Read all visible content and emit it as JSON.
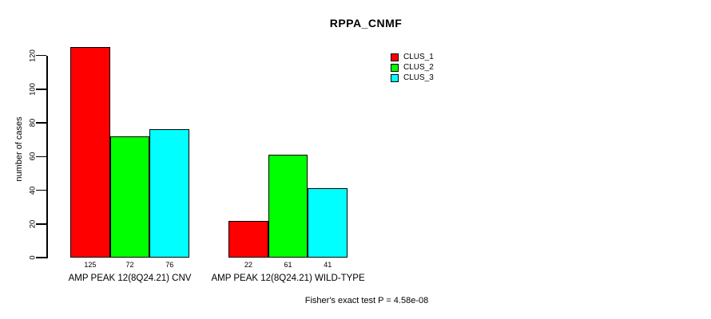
{
  "chart_data": {
    "type": "bar",
    "title": "RPPA_CNMF",
    "ylabel": "number of cases",
    "xlabel": "",
    "categories": [
      "AMP PEAK 12(8Q24.21) CNV",
      "AMP PEAK 12(8Q24.21) WILD-TYPE"
    ],
    "series": [
      {
        "name": "CLUS_1",
        "color": "#ff0000",
        "values": [
          125,
          22
        ]
      },
      {
        "name": "CLUS_2",
        "color": "#00ff00",
        "values": [
          72,
          61
        ]
      },
      {
        "name": "CLUS_3",
        "color": "#00ffff",
        "values": [
          76,
          41
        ]
      }
    ],
    "yticks": [
      0,
      20,
      40,
      60,
      80,
      100,
      120
    ],
    "ylim": [
      0,
      130
    ],
    "grid": false,
    "legend_position": "top-right",
    "show_bar_values": true,
    "annotation": "Fisher's exact test P = 4.58e-08"
  }
}
